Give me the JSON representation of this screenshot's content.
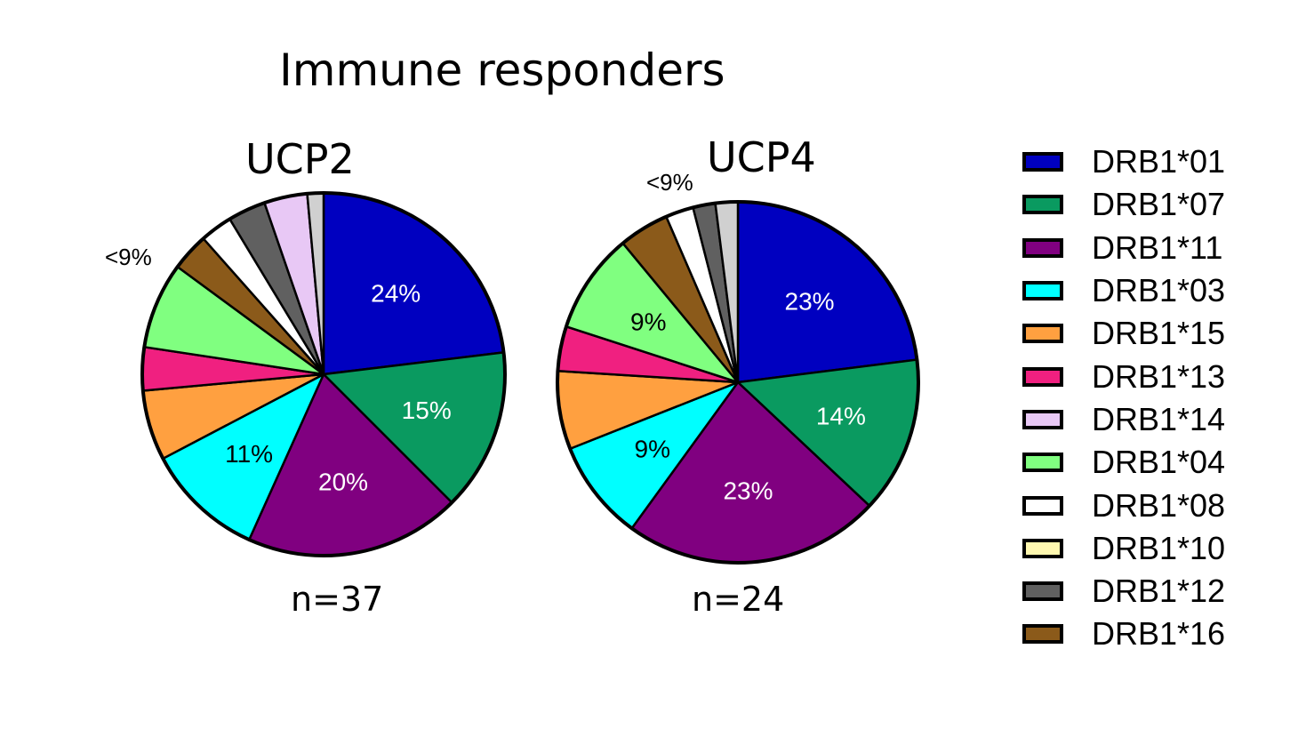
{
  "title": "Immune responders",
  "legend": [
    {
      "label": "DRB1*01",
      "color": "#0000c0"
    },
    {
      "label": "DRB1*07",
      "color": "#0a9a60"
    },
    {
      "label": "DRB1*11",
      "color": "#800080"
    },
    {
      "label": "DRB1*03",
      "color": "#00ffff"
    },
    {
      "label": "DRB1*15",
      "color": "#ffa040"
    },
    {
      "label": "DRB1*13",
      "color": "#f02080"
    },
    {
      "label": "DRB1*14",
      "color": "#e8c8f5"
    },
    {
      "label": "DRB1*04",
      "color": "#80ff80"
    },
    {
      "label": "DRB1*08",
      "color": "#ffffff"
    },
    {
      "label": "DRB1*10",
      "color": "#fff8b0"
    },
    {
      "label": "DRB1*12",
      "color": "#606060"
    },
    {
      "label": "DRB1*16",
      "color": "#8b5a1a"
    }
  ],
  "chart_data": [
    {
      "type": "pie",
      "title": "UCP2",
      "n_label": "n=37",
      "small_slices_label": "<9%",
      "slices": [
        {
          "label": "DRB1*01",
          "value": 24,
          "data_label": "24%"
        },
        {
          "label": "DRB1*07",
          "value": 15,
          "data_label": "15%"
        },
        {
          "label": "DRB1*11",
          "value": 20,
          "data_label": "20%"
        },
        {
          "label": "DRB1*03",
          "value": 11,
          "data_label": "11%"
        },
        {
          "label": "DRB1*15",
          "value": 6.5,
          "data_label": ""
        },
        {
          "label": "DRB1*13",
          "value": 4,
          "data_label": ""
        },
        {
          "label": "DRB1*04",
          "value": 8,
          "data_label": ""
        },
        {
          "label": "DRB1*16",
          "value": 3.5,
          "data_label": ""
        },
        {
          "label": "DRB1*08",
          "value": 3,
          "data_label": ""
        },
        {
          "label": "DRB1*12",
          "value": 3.5,
          "data_label": ""
        },
        {
          "label": "DRB1*14",
          "value": 4,
          "data_label": ""
        },
        {
          "label": "",
          "value": 1.5,
          "color": "#d0d0d0",
          "data_label": ""
        }
      ]
    },
    {
      "type": "pie",
      "title": "UCP4",
      "n_label": "n=24",
      "small_slices_label": "<9%",
      "slices": [
        {
          "label": "DRB1*01",
          "value": 23,
          "data_label": "23%"
        },
        {
          "label": "DRB1*07",
          "value": 14,
          "data_label": "14%"
        },
        {
          "label": "DRB1*11",
          "value": 23,
          "data_label": "23%"
        },
        {
          "label": "DRB1*03",
          "value": 9,
          "data_label": "9%"
        },
        {
          "label": "DRB1*15",
          "value": 7,
          "data_label": ""
        },
        {
          "label": "DRB1*13",
          "value": 4,
          "data_label": ""
        },
        {
          "label": "DRB1*04",
          "value": 9,
          "data_label": "9%"
        },
        {
          "label": "DRB1*16",
          "value": 4.5,
          "data_label": ""
        },
        {
          "label": "DRB1*08",
          "value": 2.5,
          "data_label": ""
        },
        {
          "label": "DRB1*12",
          "value": 2,
          "data_label": ""
        },
        {
          "label": "",
          "value": 2,
          "color": "#d0d0d0",
          "data_label": ""
        }
      ]
    }
  ]
}
